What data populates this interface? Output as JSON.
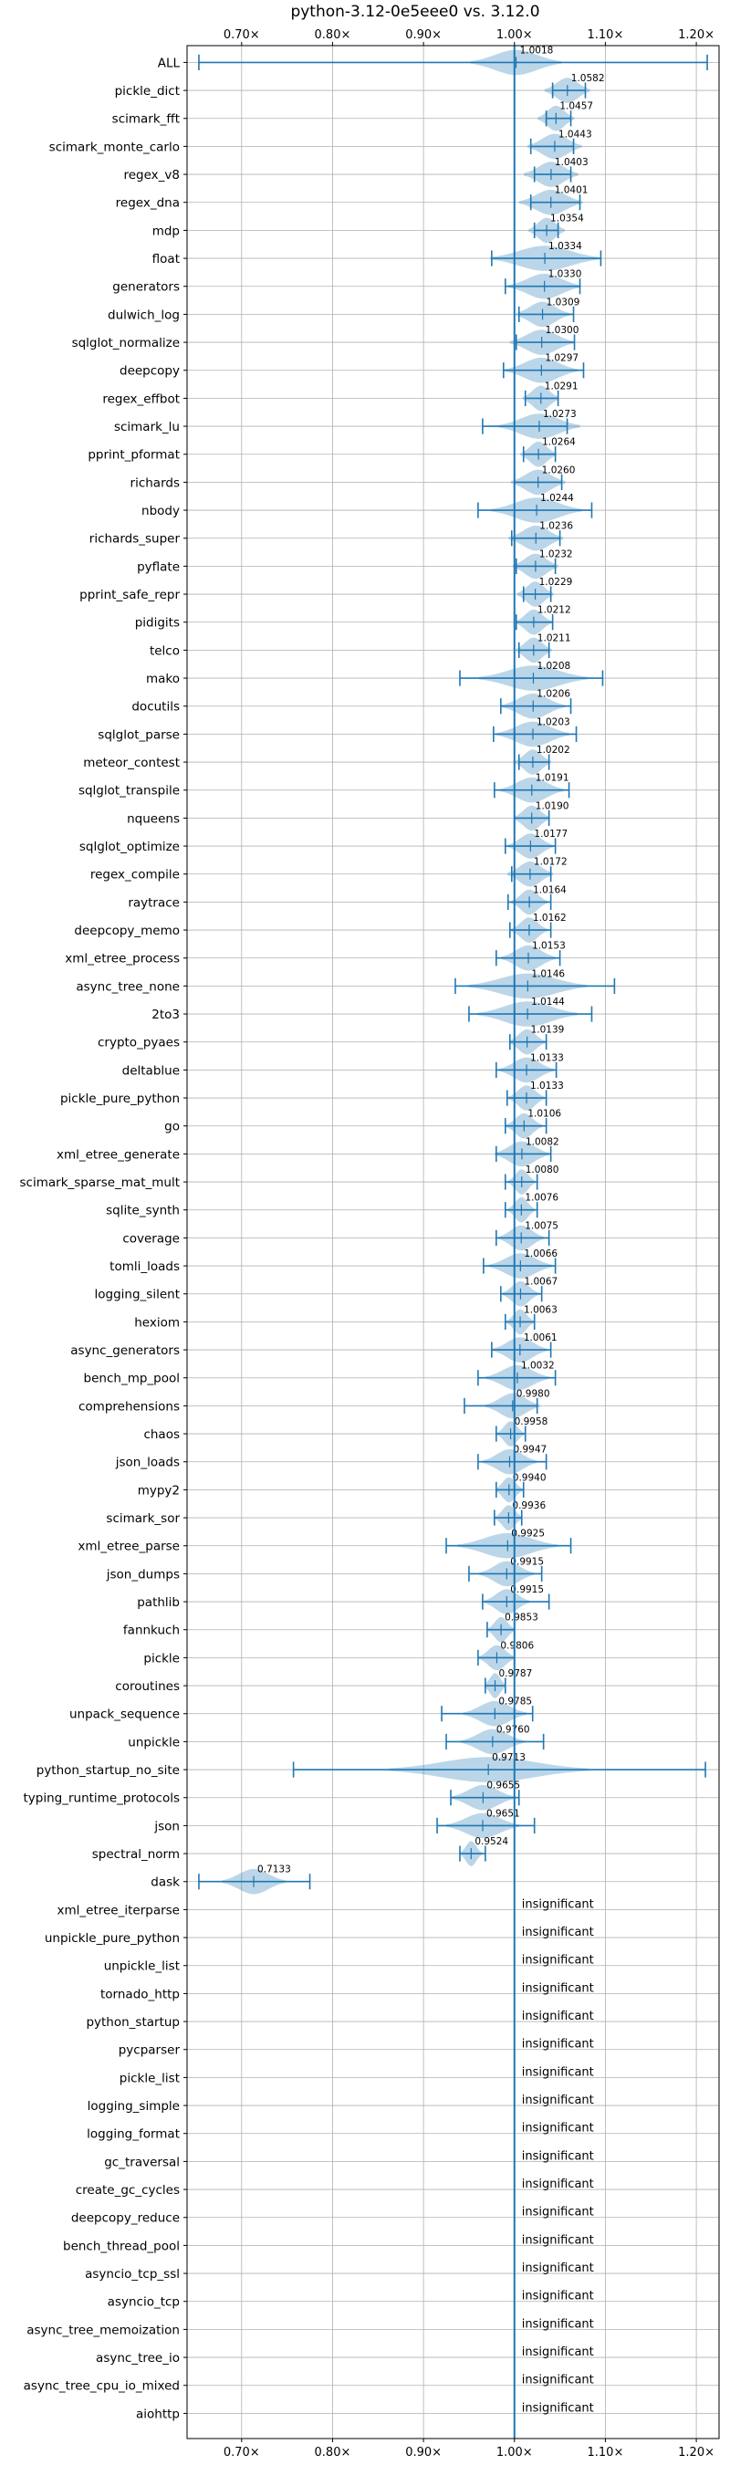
{
  "colors": {
    "accent": "#1f77b4",
    "violin_fill": "#1f77b4",
    "grid": "#b0b0b0",
    "axis": "#000000",
    "text": "#000000"
  },
  "chart_data": {
    "type": "violin",
    "title": "python-3.12-0e5eee0 vs. 3.12.0",
    "xlabel": "",
    "ylabel": "",
    "x_scale": "linear",
    "xlim": [
      0.64,
      1.225
    ],
    "grid": true,
    "reference_line": 1.0,
    "x_ticks": [
      {
        "value": 0.7,
        "label": "0.70×"
      },
      {
        "value": 0.8,
        "label": "0.80×"
      },
      {
        "value": 0.9,
        "label": "0.90×"
      },
      {
        "value": 1.0,
        "label": "1.00×"
      },
      {
        "value": 1.1,
        "label": "1.10×"
      },
      {
        "value": 1.2,
        "label": "1.20×"
      }
    ],
    "insignificant_label": "insignificant",
    "benchmarks": [
      {
        "name": "ALL",
        "mean_label": "1.0018",
        "mean": 1.0018,
        "min": 0.653,
        "max": 1.212,
        "width": 0.05,
        "significant": true
      },
      {
        "name": "pickle_dict",
        "mean_label": "1.0582",
        "mean": 1.0582,
        "min": 1.042,
        "max": 1.078,
        "width": 0.025,
        "significant": true
      },
      {
        "name": "scimark_fft",
        "mean_label": "1.0457",
        "mean": 1.0457,
        "min": 1.035,
        "max": 1.062,
        "width": 0.02,
        "significant": true
      },
      {
        "name": "scimark_monte_carlo",
        "mean_label": "1.0443",
        "mean": 1.0443,
        "min": 1.018,
        "max": 1.065,
        "width": 0.03,
        "significant": true
      },
      {
        "name": "regex_v8",
        "mean_label": "1.0403",
        "mean": 1.0403,
        "min": 1.022,
        "max": 1.062,
        "width": 0.03,
        "significant": true
      },
      {
        "name": "regex_dna",
        "mean_label": "1.0401",
        "mean": 1.0401,
        "min": 1.018,
        "max": 1.072,
        "width": 0.035,
        "significant": true
      },
      {
        "name": "mdp",
        "mean_label": "1.0354",
        "mean": 1.0354,
        "min": 1.022,
        "max": 1.048,
        "width": 0.02,
        "significant": true
      },
      {
        "name": "float",
        "mean_label": "1.0334",
        "mean": 1.0334,
        "min": 0.975,
        "max": 1.095,
        "width": 0.06,
        "significant": true
      },
      {
        "name": "generators",
        "mean_label": "1.0330",
        "mean": 1.033,
        "min": 0.99,
        "max": 1.072,
        "width": 0.04,
        "significant": true
      },
      {
        "name": "dulwich_log",
        "mean_label": "1.0309",
        "mean": 1.0309,
        "min": 1.005,
        "max": 1.065,
        "width": 0.03,
        "significant": true
      },
      {
        "name": "sqlglot_normalize",
        "mean_label": "1.0300",
        "mean": 1.03,
        "min": 1.002,
        "max": 1.066,
        "width": 0.035,
        "significant": true
      },
      {
        "name": "deepcopy",
        "mean_label": "1.0297",
        "mean": 1.0297,
        "min": 0.988,
        "max": 1.076,
        "width": 0.04,
        "significant": true
      },
      {
        "name": "regex_effbot",
        "mean_label": "1.0291",
        "mean": 1.0291,
        "min": 1.012,
        "max": 1.048,
        "width": 0.02,
        "significant": true
      },
      {
        "name": "scimark_lu",
        "mean_label": "1.0273",
        "mean": 1.0273,
        "min": 0.965,
        "max": 1.058,
        "width": 0.045,
        "significant": true
      },
      {
        "name": "pprint_pformat",
        "mean_label": "1.0264",
        "mean": 1.0264,
        "min": 1.01,
        "max": 1.045,
        "width": 0.02,
        "significant": true
      },
      {
        "name": "richards",
        "mean_label": "1.0260",
        "mean": 1.026,
        "min": 1.0,
        "max": 1.052,
        "width": 0.03,
        "significant": true
      },
      {
        "name": "nbody",
        "mean_label": "1.0244",
        "mean": 1.0244,
        "min": 0.96,
        "max": 1.085,
        "width": 0.05,
        "significant": true
      },
      {
        "name": "richards_super",
        "mean_label": "1.0236",
        "mean": 1.0236,
        "min": 0.997,
        "max": 1.05,
        "width": 0.03,
        "significant": true
      },
      {
        "name": "pyflate",
        "mean_label": "1.0232",
        "mean": 1.0232,
        "min": 1.002,
        "max": 1.045,
        "width": 0.025,
        "significant": true
      },
      {
        "name": "pprint_safe_repr",
        "mean_label": "1.0229",
        "mean": 1.0229,
        "min": 1.01,
        "max": 1.04,
        "width": 0.02,
        "significant": true
      },
      {
        "name": "pidigits",
        "mean_label": "1.0212",
        "mean": 1.0212,
        "min": 1.002,
        "max": 1.042,
        "width": 0.02,
        "significant": true
      },
      {
        "name": "telco",
        "mean_label": "1.0211",
        "mean": 1.0211,
        "min": 1.005,
        "max": 1.038,
        "width": 0.02,
        "significant": true
      },
      {
        "name": "mako",
        "mean_label": "1.0208",
        "mean": 1.0208,
        "min": 0.94,
        "max": 1.097,
        "width": 0.06,
        "significant": true
      },
      {
        "name": "docutils",
        "mean_label": "1.0206",
        "mean": 1.0206,
        "min": 0.985,
        "max": 1.062,
        "width": 0.035,
        "significant": true
      },
      {
        "name": "sqlglot_parse",
        "mean_label": "1.0203",
        "mean": 1.0203,
        "min": 0.977,
        "max": 1.068,
        "width": 0.04,
        "significant": true
      },
      {
        "name": "meteor_contest",
        "mean_label": "1.0202",
        "mean": 1.0202,
        "min": 1.005,
        "max": 1.038,
        "width": 0.02,
        "significant": true
      },
      {
        "name": "sqlglot_transpile",
        "mean_label": "1.0191",
        "mean": 1.0191,
        "min": 0.978,
        "max": 1.06,
        "width": 0.035,
        "significant": true
      },
      {
        "name": "nqueens",
        "mean_label": "1.0190",
        "mean": 1.019,
        "min": 1.0,
        "max": 1.038,
        "width": 0.02,
        "significant": true
      },
      {
        "name": "sqlglot_optimize",
        "mean_label": "1.0177",
        "mean": 1.0177,
        "min": 0.99,
        "max": 1.045,
        "width": 0.025,
        "significant": true
      },
      {
        "name": "regex_compile",
        "mean_label": "1.0172",
        "mean": 1.0172,
        "min": 0.997,
        "max": 1.04,
        "width": 0.025,
        "significant": true
      },
      {
        "name": "raytrace",
        "mean_label": "1.0164",
        "mean": 1.0164,
        "min": 0.993,
        "max": 1.04,
        "width": 0.02,
        "significant": true
      },
      {
        "name": "deepcopy_memo",
        "mean_label": "1.0162",
        "mean": 1.0162,
        "min": 0.995,
        "max": 1.04,
        "width": 0.02,
        "significant": true
      },
      {
        "name": "xml_etree_process",
        "mean_label": "1.0153",
        "mean": 1.0153,
        "min": 0.98,
        "max": 1.05,
        "width": 0.03,
        "significant": true
      },
      {
        "name": "async_tree_none",
        "mean_label": "1.0146",
        "mean": 1.0146,
        "min": 0.935,
        "max": 1.11,
        "width": 0.065,
        "significant": true
      },
      {
        "name": "2to3",
        "mean_label": "1.0144",
        "mean": 1.0144,
        "min": 0.95,
        "max": 1.085,
        "width": 0.055,
        "significant": true
      },
      {
        "name": "crypto_pyaes",
        "mean_label": "1.0139",
        "mean": 1.0139,
        "min": 0.995,
        "max": 1.035,
        "width": 0.02,
        "significant": true
      },
      {
        "name": "deltablue",
        "mean_label": "1.0133",
        "mean": 1.0133,
        "min": 0.98,
        "max": 1.046,
        "width": 0.03,
        "significant": true
      },
      {
        "name": "pickle_pure_python",
        "mean_label": "1.0133",
        "mean": 1.0133,
        "min": 0.992,
        "max": 1.035,
        "width": 0.02,
        "significant": true
      },
      {
        "name": "go",
        "mean_label": "1.0106",
        "mean": 1.0106,
        "min": 0.99,
        "max": 1.035,
        "width": 0.02,
        "significant": true
      },
      {
        "name": "xml_etree_generate",
        "mean_label": "1.0082",
        "mean": 1.0082,
        "min": 0.98,
        "max": 1.04,
        "width": 0.03,
        "significant": true
      },
      {
        "name": "scimark_sparse_mat_mult",
        "mean_label": "1.0080",
        "mean": 1.008,
        "min": 0.99,
        "max": 1.025,
        "width": 0.015,
        "significant": true
      },
      {
        "name": "sqlite_synth",
        "mean_label": "1.0076",
        "mean": 1.0076,
        "min": 0.99,
        "max": 1.025,
        "width": 0.015,
        "significant": true
      },
      {
        "name": "coverage",
        "mean_label": "1.0075",
        "mean": 1.0075,
        "min": 0.98,
        "max": 1.038,
        "width": 0.025,
        "significant": true
      },
      {
        "name": "tomli_loads",
        "mean_label": "1.0066",
        "mean": 1.0066,
        "min": 0.966,
        "max": 1.045,
        "width": 0.035,
        "significant": true
      },
      {
        "name": "logging_silent",
        "mean_label": "1.0067",
        "mean": 1.0067,
        "min": 0.985,
        "max": 1.03,
        "width": 0.02,
        "significant": true
      },
      {
        "name": "hexiom",
        "mean_label": "1.0063",
        "mean": 1.0063,
        "min": 0.99,
        "max": 1.022,
        "width": 0.015,
        "significant": true
      },
      {
        "name": "async_generators",
        "mean_label": "1.0061",
        "mean": 1.0061,
        "min": 0.975,
        "max": 1.04,
        "width": 0.03,
        "significant": true
      },
      {
        "name": "bench_mp_pool",
        "mean_label": "1.0032",
        "mean": 1.0032,
        "min": 0.96,
        "max": 1.045,
        "width": 0.035,
        "significant": true
      },
      {
        "name": "comprehensions",
        "mean_label": "0.9980",
        "mean": 0.998,
        "min": 0.945,
        "max": 1.025,
        "width": 0.03,
        "significant": true
      },
      {
        "name": "chaos",
        "mean_label": "0.9958",
        "mean": 0.9958,
        "min": 0.98,
        "max": 1.012,
        "width": 0.015,
        "significant": true
      },
      {
        "name": "json_loads",
        "mean_label": "0.9947",
        "mean": 0.9947,
        "min": 0.96,
        "max": 1.035,
        "width": 0.03,
        "significant": true
      },
      {
        "name": "mypy2",
        "mean_label": "0.9940",
        "mean": 0.994,
        "min": 0.98,
        "max": 1.01,
        "width": 0.015,
        "significant": true
      },
      {
        "name": "scimark_sor",
        "mean_label": "0.9936",
        "mean": 0.9936,
        "min": 0.978,
        "max": 1.008,
        "width": 0.015,
        "significant": true
      },
      {
        "name": "xml_etree_parse",
        "mean_label": "0.9925",
        "mean": 0.9925,
        "min": 0.925,
        "max": 1.062,
        "width": 0.055,
        "significant": true
      },
      {
        "name": "json_dumps",
        "mean_label": "0.9915",
        "mean": 0.9915,
        "min": 0.95,
        "max": 1.03,
        "width": 0.03,
        "significant": true
      },
      {
        "name": "pathlib",
        "mean_label": "0.9915",
        "mean": 0.9915,
        "min": 0.965,
        "max": 1.038,
        "width": 0.025,
        "significant": true
      },
      {
        "name": "fannkuch",
        "mean_label": "0.9853",
        "mean": 0.9853,
        "min": 0.97,
        "max": 1.0,
        "width": 0.015,
        "significant": true
      },
      {
        "name": "pickle",
        "mean_label": "0.9806",
        "mean": 0.9806,
        "min": 0.96,
        "max": 1.0,
        "width": 0.02,
        "significant": true
      },
      {
        "name": "coroutines",
        "mean_label": "0.9787",
        "mean": 0.9787,
        "min": 0.968,
        "max": 0.99,
        "width": 0.012,
        "significant": true
      },
      {
        "name": "unpack_sequence",
        "mean_label": "0.9785",
        "mean": 0.9785,
        "min": 0.92,
        "max": 1.02,
        "width": 0.035,
        "significant": true
      },
      {
        "name": "unpickle",
        "mean_label": "0.9760",
        "mean": 0.976,
        "min": 0.925,
        "max": 1.032,
        "width": 0.035,
        "significant": true
      },
      {
        "name": "python_startup_no_site",
        "mean_label": "0.9713",
        "mean": 0.9713,
        "min": 0.757,
        "max": 1.21,
        "width": 0.11,
        "significant": true
      },
      {
        "name": "typing_runtime_protocols",
        "mean_label": "0.9655",
        "mean": 0.9655,
        "min": 0.93,
        "max": 1.005,
        "width": 0.035,
        "significant": true
      },
      {
        "name": "json",
        "mean_label": "0.9651",
        "mean": 0.9651,
        "min": 0.915,
        "max": 1.022,
        "width": 0.04,
        "significant": true
      },
      {
        "name": "spectral_norm",
        "mean_label": "0.9524",
        "mean": 0.9524,
        "min": 0.94,
        "max": 0.968,
        "width": 0.012,
        "significant": true
      },
      {
        "name": "dask",
        "mean_label": "0.7133",
        "mean": 0.7133,
        "min": 0.653,
        "max": 0.775,
        "width": 0.035,
        "significant": true
      },
      {
        "name": "xml_etree_iterparse",
        "significant": false
      },
      {
        "name": "unpickle_pure_python",
        "significant": false
      },
      {
        "name": "unpickle_list",
        "significant": false
      },
      {
        "name": "tornado_http",
        "significant": false
      },
      {
        "name": "python_startup",
        "significant": false
      },
      {
        "name": "pycparser",
        "significant": false
      },
      {
        "name": "pickle_list",
        "significant": false
      },
      {
        "name": "logging_simple",
        "significant": false
      },
      {
        "name": "logging_format",
        "significant": false
      },
      {
        "name": "gc_traversal",
        "significant": false
      },
      {
        "name": "create_gc_cycles",
        "significant": false
      },
      {
        "name": "deepcopy_reduce",
        "significant": false
      },
      {
        "name": "bench_thread_pool",
        "significant": false
      },
      {
        "name": "asyncio_tcp_ssl",
        "significant": false
      },
      {
        "name": "asyncio_tcp",
        "significant": false
      },
      {
        "name": "async_tree_memoization",
        "significant": false
      },
      {
        "name": "async_tree_io",
        "significant": false
      },
      {
        "name": "async_tree_cpu_io_mixed",
        "significant": false
      },
      {
        "name": "aiohttp",
        "significant": false
      }
    ]
  }
}
